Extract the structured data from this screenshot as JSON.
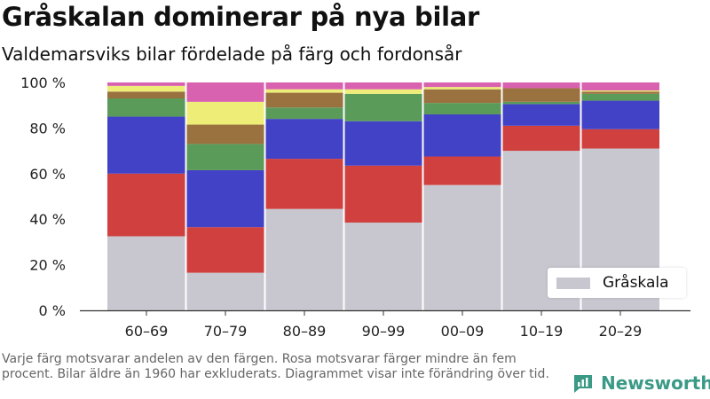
{
  "chart_data": {
    "type": "bar",
    "stacked": true,
    "title": "Gråskalan dominerar på nya bilar",
    "subtitle": "Valdemarsviks bilar fördelade på färg och fordonsår",
    "categories": [
      "60–69",
      "70–79",
      "80–89",
      "90–99",
      "00–09",
      "10–19",
      "20–29"
    ],
    "yticks": [
      "0 %",
      "20 %",
      "40 %",
      "60 %",
      "80 %",
      "100 %"
    ],
    "ylim": [
      0,
      100
    ],
    "series": [
      {
        "name": "Gråskala",
        "color": "#c8c7cf",
        "values": [
          32.5,
          16.5,
          44.5,
          38.5,
          55,
          70,
          71
        ]
      },
      {
        "color": "#d0403f",
        "values": [
          27.5,
          20,
          22,
          25,
          12.5,
          11,
          8.5
        ]
      },
      {
        "color": "#4242c6",
        "values": [
          25,
          25,
          17.5,
          19.5,
          18.5,
          9.5,
          12.5
        ]
      },
      {
        "color": "#5a9b5a",
        "values": [
          8,
          11.5,
          5,
          12,
          5,
          1,
          3
        ]
      },
      {
        "color": "#9a7240",
        "values": [
          3,
          8.5,
          6.5,
          0,
          6,
          6,
          1
        ]
      },
      {
        "color": "#eded78",
        "values": [
          2.5,
          10,
          1.5,
          2,
          1,
          0,
          0.5
        ]
      },
      {
        "color": "#d962b0",
        "values": [
          1.5,
          8.5,
          3,
          3,
          2,
          2.5,
          3.5
        ]
      }
    ],
    "legend": {
      "position": "bottom-right",
      "entries": [
        "Gråskala"
      ]
    },
    "grid": false
  },
  "footnote": "Varje färg motsvarar andelen av den färgen. Rosa motsvarar färger mindre än fem procent. Bilar äldre än 1960 har exkluderats. Diagrammet visar inte förändring över tid.",
  "brand": {
    "name": "Newsworthy",
    "color": "#3a9a86"
  }
}
